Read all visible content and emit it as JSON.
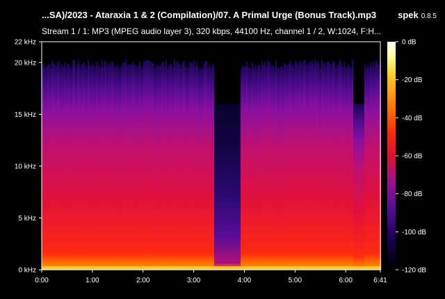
{
  "window": {
    "title": "...SA)/2023 - Ataraxia 1 & 2 (Compilation)/07. A Primal Urge (Bonus Track).mp3",
    "app_name": "spek",
    "app_version": "0.8.5",
    "stream_info": "Stream 1 / 1: MP3 (MPEG audio layer 3), 320 kbps, 44100 Hz, channel 1 / 2, W:1024, F:H..."
  },
  "freq_axis": {
    "labels": [
      "0 kHz",
      "5 kHz",
      "10 kHz",
      "15 kHz",
      "20 kHz",
      "22 kHz"
    ],
    "values": [
      0,
      5,
      10,
      15,
      20,
      22
    ],
    "max": 22
  },
  "time_axis": {
    "labels": [
      "0:00",
      "1:00",
      "2:00",
      "3:00",
      "4:00",
      "5:00",
      "6:00",
      "6:41"
    ],
    "seconds": [
      0,
      60,
      120,
      180,
      240,
      300,
      360,
      401
    ],
    "max": 401
  },
  "db_axis": {
    "labels": [
      "0 dB",
      "-20 dB",
      "-40 dB",
      "-60 dB",
      "-80 dB",
      "-100 dB",
      "-120 dB"
    ],
    "values": [
      0,
      -20,
      -40,
      -60,
      -80,
      -100,
      -120
    ]
  },
  "colors": {
    "background": "#000000",
    "palette": [
      "#000000",
      "#0a0030",
      "#2a0a6e",
      "#6a10a0",
      "#b0107a",
      "#e01030",
      "#ff2010",
      "#ff7a00",
      "#ffcc20",
      "#ffffa0",
      "#ffffff"
    ]
  }
}
